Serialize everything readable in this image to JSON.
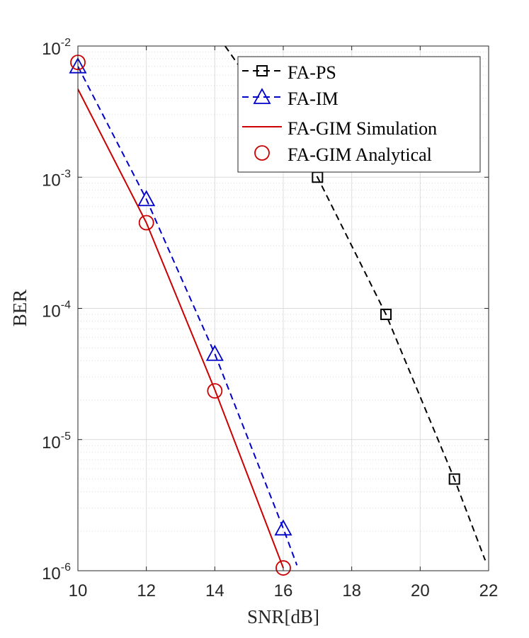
{
  "chart_data": {
    "type": "line",
    "xlabel": "SNR[dB]",
    "ylabel": "BER",
    "xlim": [
      10,
      22
    ],
    "ylim": [
      1e-06,
      0.01
    ],
    "yscale": "log",
    "xticks": [
      10,
      12,
      14,
      16,
      18,
      20,
      22
    ],
    "yticks": [
      {
        "value": 0.01,
        "base": "10",
        "exp": "-2"
      },
      {
        "value": 0.001,
        "base": "10",
        "exp": "-3"
      },
      {
        "value": 0.0001,
        "base": "10",
        "exp": "-4"
      },
      {
        "value": 1e-05,
        "base": "10",
        "exp": "-5"
      },
      {
        "value": 1e-06,
        "base": "10",
        "exp": "-6"
      }
    ],
    "grid": true,
    "legend_position": "top-right",
    "series": [
      {
        "name": "FA-PS",
        "color": "#000000",
        "dash": true,
        "marker": "square",
        "x": [
          14.3,
          17,
          19,
          21,
          21.9
        ],
        "y": [
          0.01,
          0.001,
          9e-05,
          5e-06,
          1.2e-06
        ],
        "marker_x": [
          17,
          19,
          21
        ],
        "marker_y": [
          0.001,
          9e-05,
          5e-06
        ]
      },
      {
        "name": "FA-IM",
        "color": "#0000cc",
        "dash": true,
        "marker": "triangle",
        "x": [
          10,
          12,
          14,
          16,
          16.4
        ],
        "y": [
          0.007,
          0.00068,
          4.5e-05,
          2.1e-06,
          1.1e-06
        ],
        "marker_x": [
          10,
          12,
          14,
          16
        ],
        "marker_y": [
          0.007,
          0.00068,
          4.5e-05,
          2.1e-06
        ]
      },
      {
        "name": "FA-GIM Simulation",
        "color": "#cc0000",
        "dash": false,
        "marker": "none",
        "x": [
          10,
          12,
          14,
          16
        ],
        "y": [
          0.0047,
          0.00045,
          2.4e-05,
          1.05e-06
        ]
      },
      {
        "name": "FA-GIM Analytical",
        "color": "#cc0000",
        "dash": false,
        "marker": "circle",
        "line": false,
        "marker_x": [
          10,
          12,
          14,
          16
        ],
        "marker_y": [
          0.0075,
          0.00045,
          2.35e-05,
          1.05e-06
        ]
      }
    ]
  }
}
